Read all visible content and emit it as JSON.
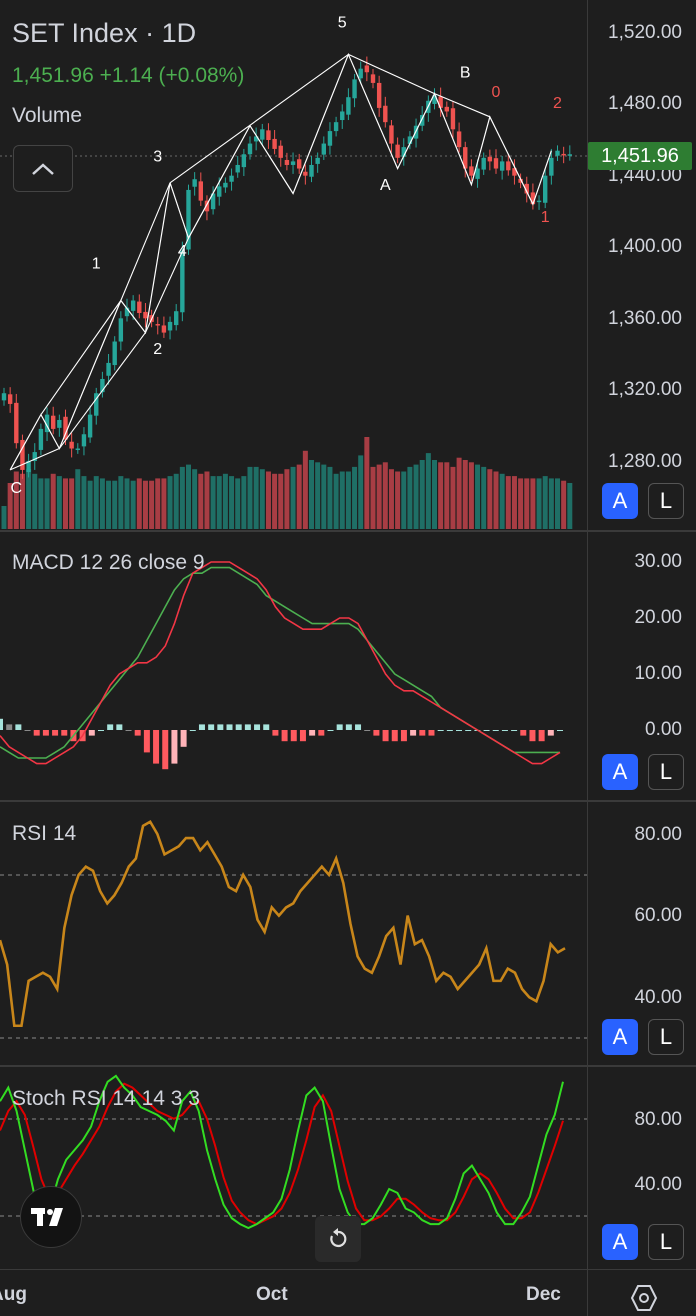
{
  "header": {
    "symbol_title": "SET Index · 1D",
    "price_change": "1,451.96 +1.14 (+0.08%)",
    "volume_label": "Volume",
    "current_price_badge": "1,451.96"
  },
  "panels": {
    "macd_title": "MACD 12 26 close 9",
    "rsi_title": "RSI 14",
    "stoch_title": "Stoch RSI 14 14 3 3"
  },
  "axes": {
    "price_ticks": [
      "1,520.00",
      "1,480.00",
      "1,440.00",
      "1,400.00",
      "1,360.00",
      "1,320.00",
      "1,280.00"
    ],
    "macd_ticks": [
      "30.00",
      "20.00",
      "10.00",
      "0.00"
    ],
    "rsi_ticks": [
      "80.00",
      "60.00",
      "40.00"
    ],
    "stoch_ticks": [
      "80.00",
      "40.00"
    ],
    "time_ticks": [
      "Aug",
      "Oct",
      "Dec"
    ]
  },
  "buttons": {
    "auto": "A",
    "log": "L"
  },
  "icons": {
    "collapse": "chevron-up-icon",
    "logo": "tradingview-logo-icon",
    "reset": "reset-icon",
    "settings": "hexagon-settings-icon"
  },
  "colors": {
    "up": "#26a69a",
    "down": "#ef5350",
    "accent": "#2962ff",
    "rsi": "#c8861a",
    "macd": "#f23645",
    "signal": "#4caf50",
    "price_badge": "#2e7d32"
  },
  "chart_data": {
    "type": "candlestick",
    "title": "SET Index · 1D",
    "ylim": [
      1255,
      1535
    ],
    "series": [
      {
        "name": "close",
        "values": [
          1318,
          1312,
          1290,
          1275,
          1280,
          1285,
          1298,
          1306,
          1298,
          1303,
          1292,
          1287,
          1287,
          1295,
          1306,
          1318,
          1326,
          1335,
          1347,
          1360,
          1366,
          1370,
          1363,
          1360,
          1358,
          1356,
          1352,
          1358,
          1364,
          1398,
          1432,
          1438,
          1426,
          1420,
          1430,
          1434,
          1436,
          1440,
          1446,
          1452,
          1458,
          1462,
          1466,
          1460,
          1455,
          1450,
          1446,
          1448,
          1444,
          1440,
          1446,
          1450,
          1458,
          1465,
          1470,
          1476,
          1484,
          1494,
          1500,
          1498,
          1492,
          1478,
          1470,
          1458,
          1450,
          1456,
          1462,
          1468,
          1474,
          1482,
          1485,
          1478,
          1476,
          1466,
          1456,
          1444,
          1440,
          1444,
          1450,
          1448,
          1444,
          1448,
          1443,
          1440,
          1436,
          1430,
          1424,
          1426,
          1440,
          1450,
          1454,
          1452,
          1452
        ]
      },
      {
        "name": "volume",
        "values": [
          10,
          20,
          25,
          24,
          26,
          24,
          22,
          22,
          24,
          23,
          22,
          22,
          26,
          23,
          21,
          23,
          22,
          21,
          21,
          23,
          22,
          21,
          22,
          21,
          21,
          22,
          22,
          23,
          24,
          27,
          28,
          26,
          24,
          25,
          23,
          23,
          24,
          23,
          22,
          23,
          27,
          27,
          26,
          25,
          24,
          24,
          26,
          27,
          28,
          34,
          30,
          29,
          28,
          27,
          24,
          25,
          25,
          27,
          32,
          40,
          27,
          28,
          29,
          26,
          25,
          25,
          27,
          28,
          30,
          33,
          30,
          29,
          29,
          27,
          31,
          30,
          29,
          28,
          27,
          26,
          25,
          24,
          23,
          23,
          22,
          22,
          22,
          22,
          23,
          22,
          22,
          21,
          20
        ]
      },
      {
        "name": "MACD",
        "values": [
          -1,
          -3,
          -4,
          -5,
          -6,
          -6,
          -5,
          -4,
          -3,
          -1,
          2,
          5,
          8,
          10,
          11,
          12,
          12,
          13,
          15,
          19,
          24,
          28,
          29,
          30,
          30,
          30,
          29,
          28,
          27,
          25,
          22,
          20,
          19,
          18,
          18,
          18,
          19,
          20,
          20,
          19,
          16,
          13,
          10,
          8,
          7,
          7,
          6,
          5,
          4,
          3,
          2,
          1,
          0,
          -1,
          -2,
          -3,
          -4,
          -5,
          -6,
          -6,
          -5,
          -4
        ]
      },
      {
        "name": "Signal",
        "values": [
          -3,
          -4,
          -5,
          -5,
          -5,
          -5,
          -4,
          -3,
          -1,
          1,
          3,
          5,
          7,
          9,
          11,
          13,
          16,
          19,
          22,
          25,
          27,
          28,
          28,
          29,
          29,
          29,
          28,
          27,
          26,
          24,
          23,
          22,
          21,
          20,
          19,
          19,
          19,
          19,
          19,
          18,
          16,
          14,
          12,
          10,
          9,
          8,
          7,
          6,
          4,
          3,
          2,
          1,
          0,
          -1,
          -2,
          -3,
          -4,
          -4,
          -4,
          -4,
          -4,
          -4
        ]
      },
      {
        "name": "RSI",
        "values": [
          54,
          48,
          33,
          33,
          44,
          45,
          46,
          45,
          42,
          57,
          65,
          70,
          72,
          71,
          66,
          63,
          65,
          68,
          72,
          74,
          82,
          83,
          80,
          75,
          76,
          77,
          79,
          79,
          76,
          78,
          75,
          72,
          67,
          66,
          70,
          67,
          59,
          56,
          62,
          60,
          62,
          63,
          66,
          68,
          70,
          72,
          70,
          74,
          68,
          58,
          50,
          47,
          46,
          50,
          55,
          57,
          48,
          60,
          53,
          54,
          50,
          44,
          46,
          45,
          42,
          44,
          46,
          48,
          52,
          44,
          44,
          47,
          46,
          42,
          40,
          39,
          44,
          53,
          51,
          52
        ]
      },
      {
        "name": "Stoch K",
        "values": [
          85,
          92,
          80,
          60,
          40,
          20,
          30,
          45,
          55,
          60,
          65,
          72,
          85,
          95,
          98,
          92,
          88,
          82,
          80,
          78,
          75,
          70,
          85,
          90,
          80,
          60,
          45,
          32,
          25,
          22,
          20,
          22,
          25,
          28,
          35,
          50,
          70,
          88,
          92,
          85,
          62,
          40,
          28,
          22,
          22,
          25,
          32,
          40,
          38,
          30,
          28,
          24,
          22,
          22,
          25,
          35,
          48,
          52,
          45,
          38,
          28,
          22,
          22,
          28,
          36,
          52,
          68,
          78,
          95
        ]
      },
      {
        "name": "Stoch D",
        "values": [
          70,
          80,
          85,
          78,
          62,
          45,
          35,
          38,
          45,
          52,
          58,
          65,
          72,
          82,
          90,
          94,
          92,
          88,
          84,
          80,
          78,
          76,
          78,
          83,
          85,
          76,
          62,
          46,
          34,
          28,
          24,
          22,
          24,
          26,
          30,
          38,
          50,
          65,
          82,
          88,
          80,
          62,
          44,
          30,
          24,
          24,
          26,
          30,
          35,
          35,
          32,
          28,
          25,
          24,
          24,
          28,
          36,
          45,
          48,
          45,
          38,
          30,
          25,
          25,
          28,
          38,
          50,
          62,
          75
        ]
      }
    ],
    "wave_labels": [
      "C",
      "1",
      "2",
      "3",
      "4",
      "5",
      "A",
      "B",
      "0",
      "1",
      "2"
    ]
  }
}
